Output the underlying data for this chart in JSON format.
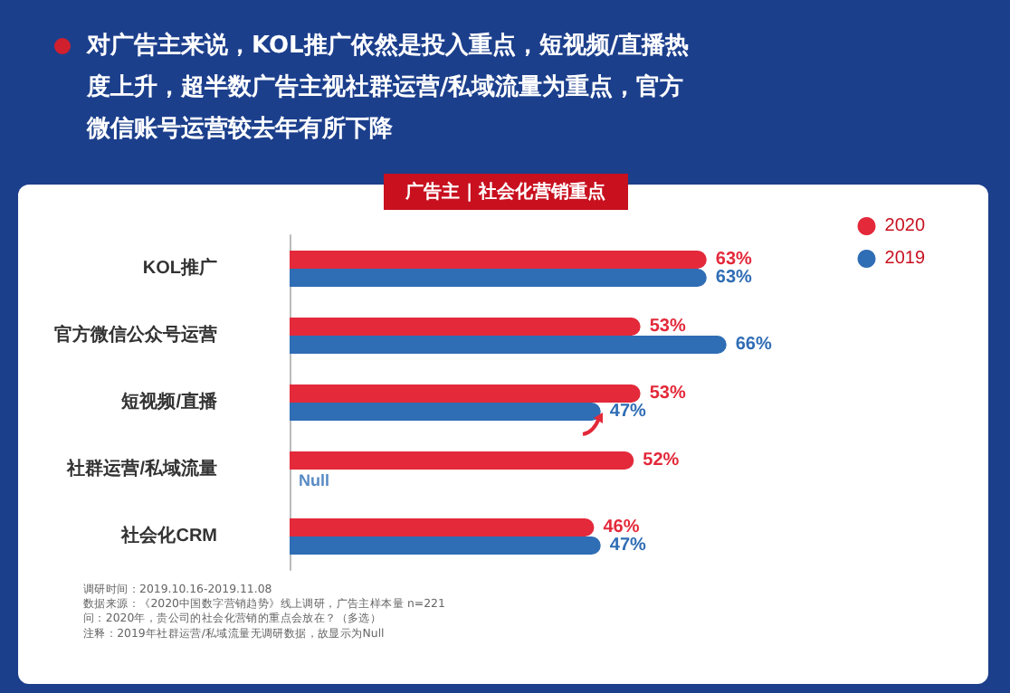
{
  "chart_data": {
    "type": "bar",
    "orientation": "horizontal",
    "title": "对广告主来说，KOL推广依然是投入重点，短视频/直播热度上升，超半数广告主视社群运营/私域流量为重点，官方微信账号运营较去年有所下降",
    "subtitle": "广告主 | 社会化营销重点",
    "categories": [
      "KOL推广",
      "官方微信公众号运营",
      "短视频/直播",
      "社群运营/私域流量",
      "社会化CRM"
    ],
    "series": [
      {
        "name": "2020",
        "color": "#e3293a",
        "values": [
          63,
          53,
          53,
          52,
          46
        ],
        "value_labels": [
          "63%",
          "53%",
          "53%",
          "52%",
          "46%"
        ]
      },
      {
        "name": "2019",
        "color": "#2f6db5",
        "values": [
          63,
          66,
          47,
          null,
          47
        ],
        "value_labels": [
          "63%",
          "66%",
          "47%",
          "Null",
          "47%"
        ]
      }
    ],
    "legend": "top right",
    "annotations": [
      "调研时间：2019.10.16-2019.11.08",
      "数据来源：《2020中国数字营销趋势》线上调研，广告主样本量 n=221",
      "问：2020年，贵公司的社会化营销的重点会放在？（多选）",
      "注释：2019年社群运营/私域流量无调研数据，故显示为Null"
    ]
  }
}
